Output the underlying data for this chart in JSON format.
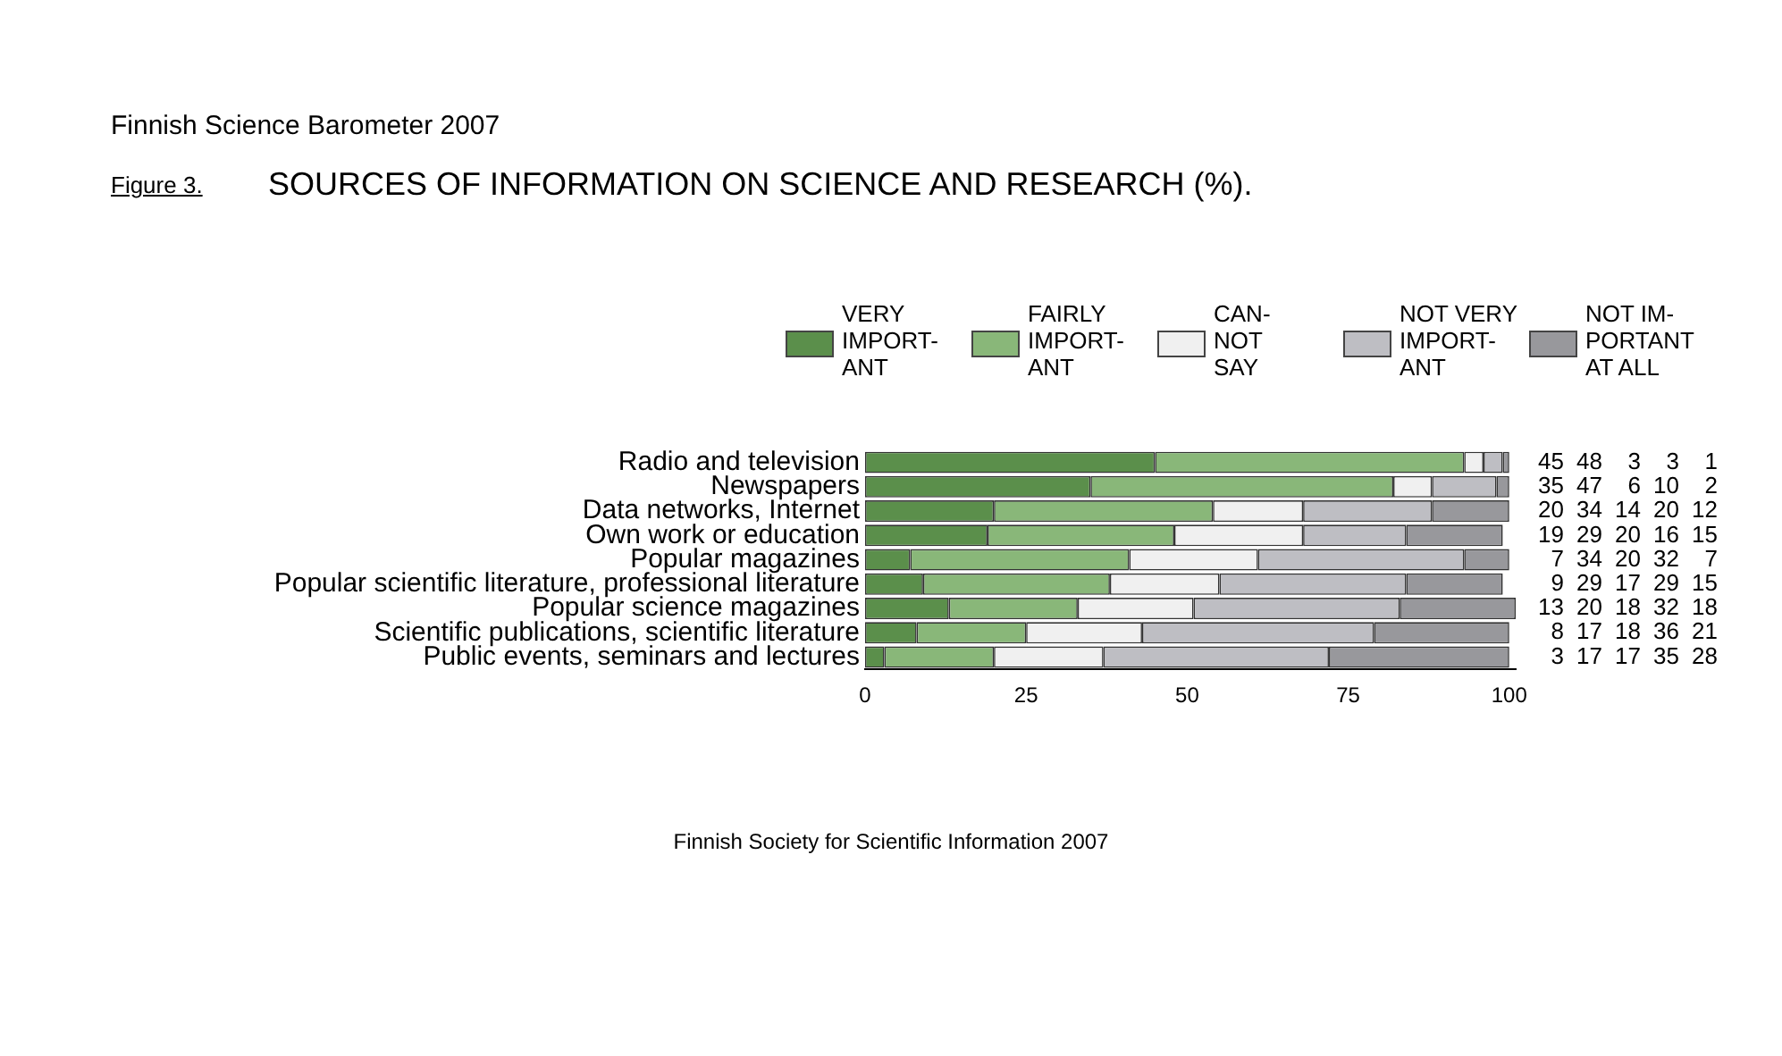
{
  "chart_data": {
    "type": "bar",
    "orientation": "horizontal",
    "stacked": true,
    "subtitle": "Finnish Science Barometer 2007",
    "title": "SOURCES OF INFORMATION ON SCIENCE AND RESEARCH (%).",
    "annotations": [
      "Figure 3.",
      "Finnish Society for Scientific Information 2007"
    ],
    "categories": [
      "Radio and television",
      "Newspapers",
      "Data networks, Internet",
      "Own work or education",
      "Popular magazines",
      "Popular scientific literature, professional literature",
      "Popular science magazines",
      "Scientific publications, scientific literature",
      "Public events, seminars and lectures"
    ],
    "series": [
      {
        "name": "VERY\nIMPORT-\nANT",
        "color": "#5b8f4b",
        "values": [
          45,
          35,
          20,
          19,
          7,
          9,
          13,
          8,
          3
        ]
      },
      {
        "name": "FAIRLY\nIMPORT-\nANT",
        "color": "#89b779",
        "values": [
          48,
          47,
          34,
          29,
          34,
          29,
          20,
          17,
          17
        ]
      },
      {
        "name": "CAN-\nNOT\nSAY",
        "color": "#f0f0f0",
        "values": [
          3,
          6,
          14,
          20,
          20,
          17,
          18,
          18,
          17
        ]
      },
      {
        "name": "NOT VERY\nIMPORT-\nANT",
        "color": "#bebec3",
        "values": [
          3,
          10,
          20,
          16,
          32,
          29,
          32,
          36,
          35
        ]
      },
      {
        "name": "NOT IM-\nPORTANT\nAT ALL",
        "color": "#98989c",
        "values": [
          1,
          2,
          12,
          15,
          7,
          15,
          18,
          21,
          28
        ]
      }
    ],
    "xlim": [
      0,
      101
    ],
    "xticks": [
      0,
      25,
      50,
      75,
      100
    ],
    "grid": false,
    "legend": "top",
    "data_labels": true
  }
}
